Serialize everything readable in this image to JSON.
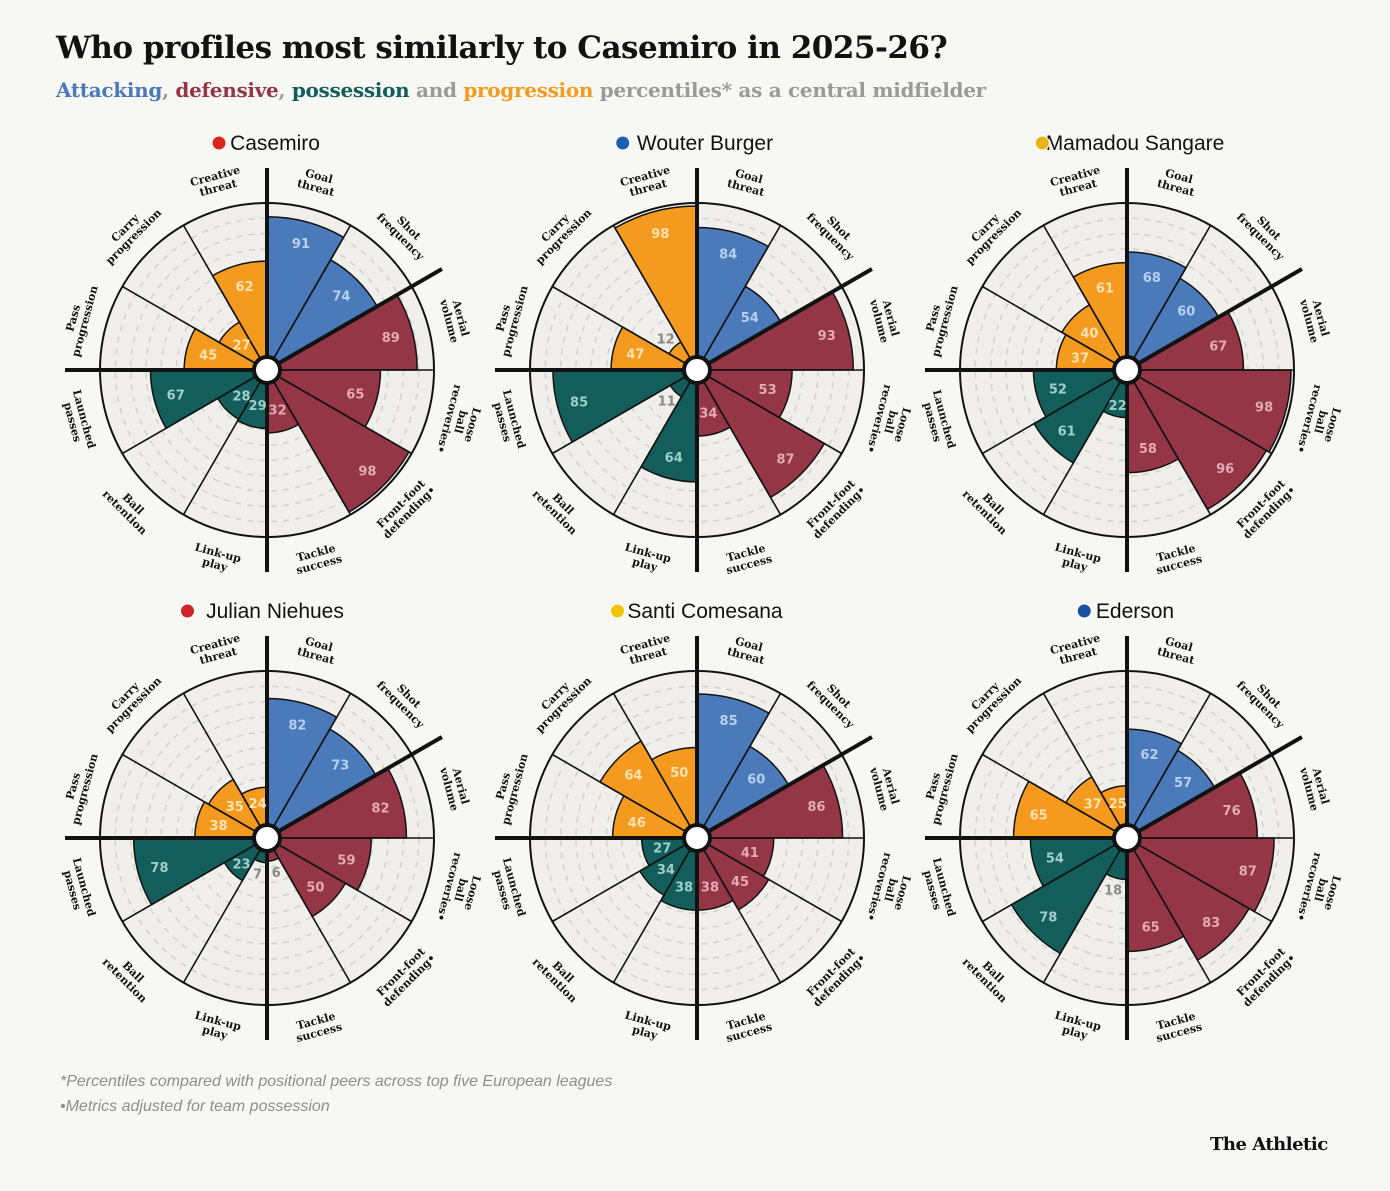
{
  "title": "Who profiles most similarly to Casemiro in 2025-26?",
  "subtitle": {
    "parts": [
      {
        "text": "Attacking",
        "color": "#4a7aba"
      },
      {
        "text": ", ",
        "color": "#9a9a9a"
      },
      {
        "text": "defensive",
        "color": "#943646"
      },
      {
        "text": ", ",
        "color": "#9a9a9a"
      },
      {
        "text": "possession",
        "color": "#135e5a"
      },
      {
        "text": " and ",
        "color": "#9a9a9a"
      },
      {
        "text": "progression",
        "color": "#f49b1f"
      },
      {
        "text": " percentiles* as a central midfielder",
        "color": "#9a9a9a"
      }
    ]
  },
  "colors": {
    "attacking": "#4a7aba",
    "defensive": "#943646",
    "possession": "#135e5a",
    "progression": "#f49b1f"
  },
  "chart_data": {
    "type": "polar-bar",
    "scale": [
      0,
      100
    ],
    "metrics": [
      {
        "label": "Goal threat",
        "lines": [
          "Goal",
          "threat"
        ],
        "group": "attacking"
      },
      {
        "label": "Shot frequency",
        "lines": [
          "Shot",
          "frequency"
        ],
        "group": "attacking"
      },
      {
        "label": "Aerial volume",
        "lines": [
          "Aerial",
          "volume"
        ],
        "group": "defensive"
      },
      {
        "label": "Loose ball recoveries•",
        "lines": [
          "Loose",
          "ball",
          "recoveries•"
        ],
        "group": "defensive"
      },
      {
        "label": "Front-foot defending•",
        "lines": [
          "Front-foot",
          "defending•"
        ],
        "group": "defensive"
      },
      {
        "label": "Tackle success",
        "lines": [
          "Tackle",
          "success"
        ],
        "group": "defensive"
      },
      {
        "label": "Link-up play",
        "lines": [
          "Link-up",
          "play"
        ],
        "group": "possession"
      },
      {
        "label": "Ball retention",
        "lines": [
          "Ball",
          "retention"
        ],
        "group": "possession"
      },
      {
        "label": "Launched passes",
        "lines": [
          "Launched",
          "passes"
        ],
        "group": "possession"
      },
      {
        "label": "Pass progression",
        "lines": [
          "Pass",
          "progression"
        ],
        "group": "progression"
      },
      {
        "label": "Carry progression",
        "lines": [
          "Carry",
          "progression"
        ],
        "group": "progression"
      },
      {
        "label": "Creative threat",
        "lines": [
          "Creative",
          "threat"
        ],
        "group": "progression"
      }
    ],
    "players": [
      {
        "name": "Casemiro",
        "badge": "manchester-united-badge-icon",
        "badge_color": "#d8261c",
        "values": [
          91,
          74,
          89,
          65,
          98,
          32,
          29,
          28,
          67,
          45,
          27,
          62
        ]
      },
      {
        "name": "Wouter Burger",
        "badge": "hoffenheim-badge-icon",
        "badge_color": "#1b5fb3",
        "values": [
          84,
          54,
          93,
          53,
          87,
          34,
          64,
          11,
          85,
          47,
          12,
          98
        ]
      },
      {
        "name": "Mamadou Sangare",
        "badge": "lens-badge-icon",
        "badge_color": "#e8b41a",
        "values": [
          68,
          60,
          67,
          98,
          96,
          58,
          22,
          61,
          52,
          37,
          40,
          61
        ]
      },
      {
        "name": "Julian Niehues",
        "badge": "heidenheim-badge-icon",
        "badge_color": "#d0202a",
        "values": [
          82,
          73,
          82,
          59,
          50,
          6,
          7,
          23,
          78,
          38,
          35,
          24
        ]
      },
      {
        "name": "Santi Comesana",
        "badge": "villarreal-badge-icon",
        "badge_color": "#f2c500",
        "values": [
          85,
          60,
          86,
          41,
          45,
          38,
          38,
          34,
          27,
          46,
          64,
          50
        ]
      },
      {
        "name": "Ederson",
        "badge": "atalanta-badge-icon",
        "badge_color": "#1a4f9c",
        "values": [
          62,
          57,
          76,
          87,
          83,
          65,
          18,
          78,
          54,
          65,
          37,
          25
        ]
      }
    ]
  },
  "footnotes": [
    "*Percentiles compared with positional peers across top five European leagues",
    "•Metrics adjusted for team possession"
  ],
  "brand": "The Athletic"
}
